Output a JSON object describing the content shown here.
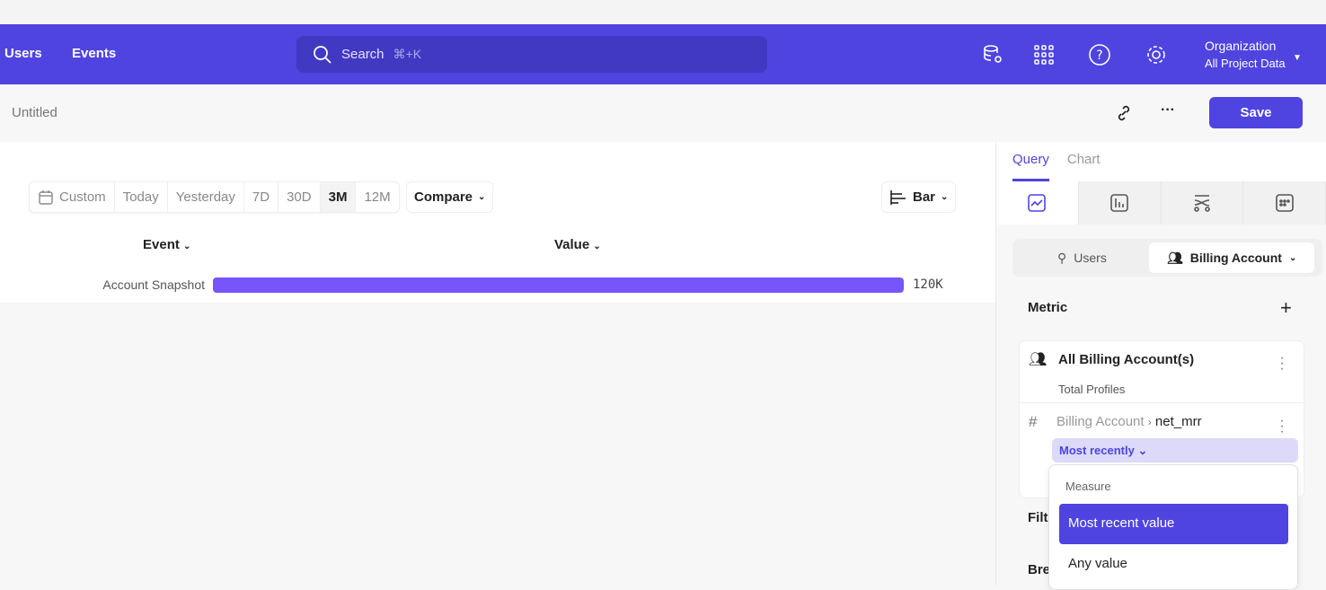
{
  "nav": {
    "links": [
      "Users",
      "Events"
    ],
    "search_placeholder": "Search",
    "search_shortcut": "⌘+K",
    "icons": [
      "database-settings-icon",
      "apps-grid-icon",
      "help-icon",
      "settings-icon"
    ],
    "org_name": "Organization",
    "org_project": "All Project Data"
  },
  "header": {
    "title": "Untitled",
    "save_label": "Save"
  },
  "toolbar": {
    "date_ranges": [
      "Custom",
      "Today",
      "Yesterday",
      "7D",
      "30D",
      "3M",
      "12M"
    ],
    "active_range": "3M",
    "compare_label": "Compare",
    "chart_type_label": "Bar"
  },
  "table": {
    "col_event": "Event",
    "col_value": "Value"
  },
  "chart_data": {
    "type": "bar",
    "categories": [
      "Account Snapshot"
    ],
    "values": [
      120000
    ],
    "value_labels": [
      "120K"
    ],
    "bar_color": "#7755fa"
  },
  "panel": {
    "tabs": [
      "Query",
      "Chart"
    ],
    "active_tab": "Query",
    "segment": {
      "users": "Users",
      "billing": "Billing Account"
    },
    "metric_label": "Metric",
    "metric": {
      "title": "All Billing Account(s)",
      "subtitle": "Total Profiles",
      "property_parent": "Billing Account",
      "property": "net_mrr",
      "measure_chip": "Most recently"
    },
    "filter_label": "Filte",
    "breakdown_label": "Bre"
  },
  "dropdown": {
    "header": "Measure",
    "options": [
      "Most recent value",
      "Any value"
    ],
    "selected": "Most recent value"
  },
  "colors": {
    "brand": "#4f44e0",
    "bar": "#7755fa"
  }
}
